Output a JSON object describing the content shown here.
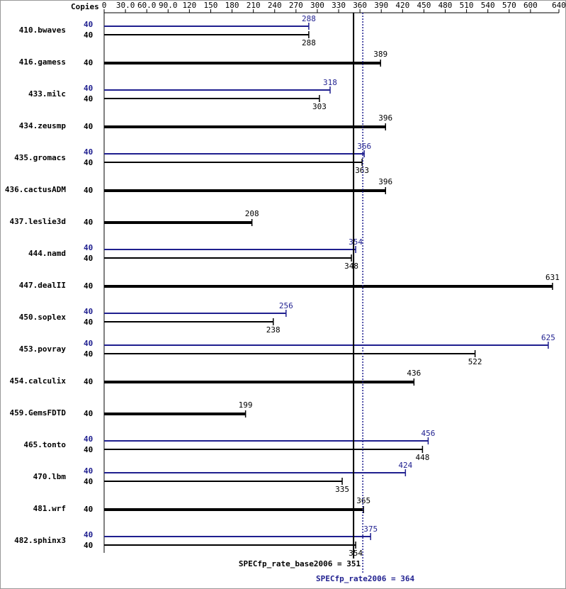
{
  "chart_data": {
    "type": "bar",
    "orientation": "horizontal",
    "copies_header": "Copies",
    "categories": [
      "410.bwaves",
      "416.gamess",
      "433.milc",
      "434.zeusmp",
      "435.gromacs",
      "436.cactusADM",
      "437.leslie3d",
      "444.namd",
      "447.dealII",
      "450.soplex",
      "453.povray",
      "454.calculix",
      "459.GemsFDTD",
      "465.tonto",
      "470.lbm",
      "481.wrf",
      "482.sphinx3"
    ],
    "series": [
      {
        "color": "#000000",
        "copies": [
          40,
          40,
          40,
          40,
          40,
          40,
          40,
          40,
          40,
          40,
          40,
          40,
          40,
          40,
          40,
          40,
          40
        ],
        "values": [
          288,
          389,
          303,
          396,
          363,
          396,
          208,
          348,
          631,
          238,
          522,
          436,
          199,
          448,
          335,
          365,
          354
        ]
      },
      {
        "color": "#1f1f8f",
        "copies": [
          40,
          null,
          40,
          null,
          40,
          null,
          null,
          40,
          null,
          40,
          40,
          null,
          null,
          40,
          40,
          null,
          40
        ],
        "values": [
          288,
          null,
          318,
          null,
          366,
          null,
          null,
          354,
          null,
          256,
          625,
          null,
          null,
          456,
          424,
          null,
          375
        ]
      }
    ],
    "xlim": [
      0,
      640
    ],
    "xticks": [
      0,
      {
        "value": 30,
        "label": "30.0"
      },
      {
        "value": 60,
        "label": "60.0"
      },
      {
        "value": 90,
        "label": "90.0"
      },
      120,
      150,
      180,
      210,
      240,
      270,
      300,
      330,
      360,
      390,
      420,
      450,
      480,
      510,
      540,
      570,
      600,
      640
    ],
    "reference_lines": [
      {
        "label": "SPECfp_rate_base2006 = 351",
        "value": 351,
        "color": "#000000",
        "style": "solid"
      },
      {
        "label": "SPECfp_rate2006 = 364",
        "value": 364,
        "color": "#1f1f8f",
        "style": "dotted"
      }
    ]
  }
}
